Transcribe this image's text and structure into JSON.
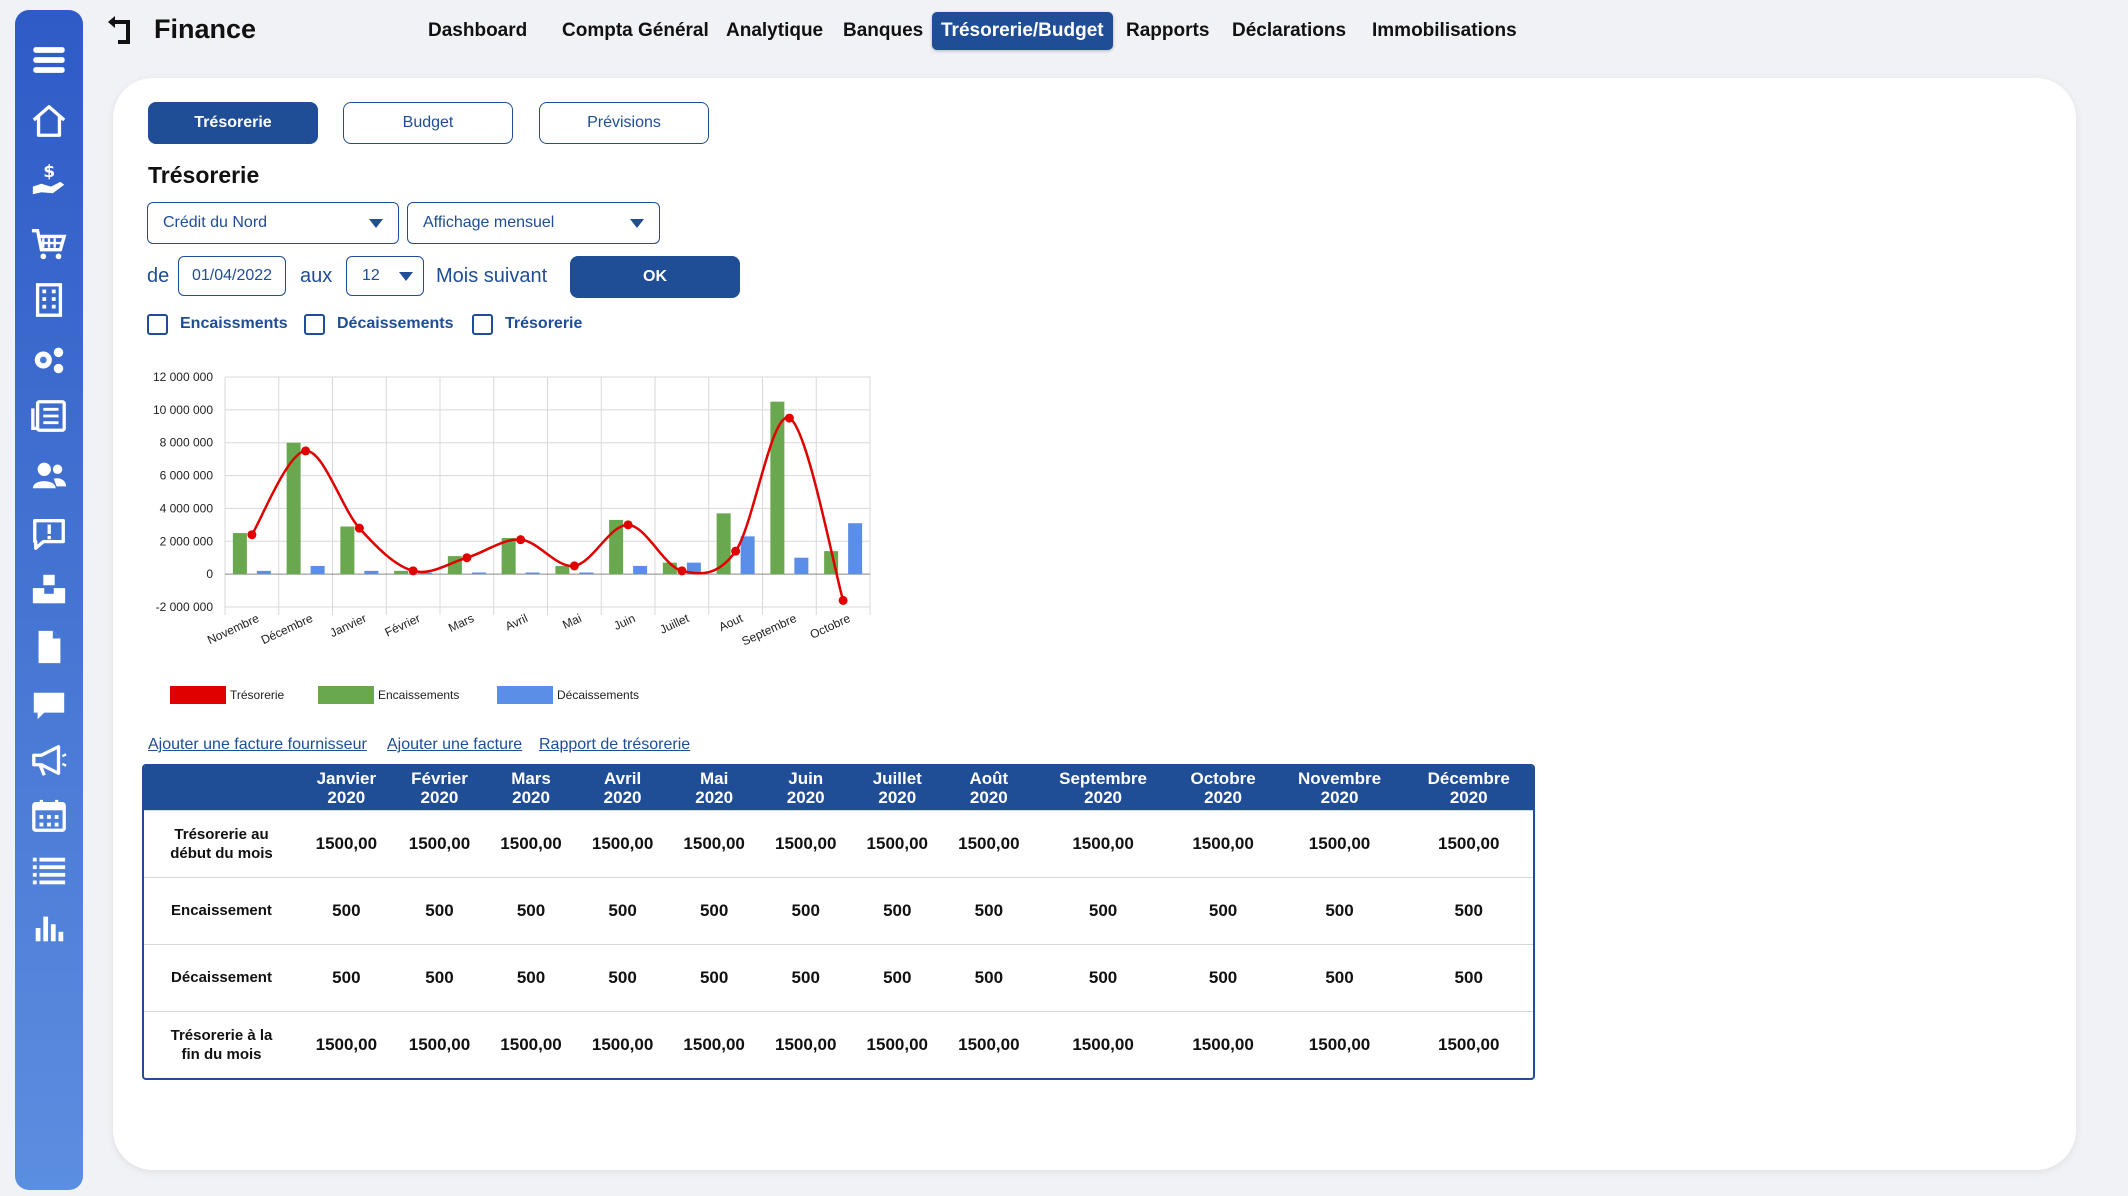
{
  "app": {
    "title": "Finance"
  },
  "nav": [
    "Dashboard",
    "Compta Général",
    "Analytique",
    "Banques",
    "Trésorerie/Budget",
    "Rapports",
    "Déclarations",
    "Immobilisations"
  ],
  "nav_active": "Trésorerie/Budget",
  "sidebar_icons": [
    "menu-icon",
    "home-icon",
    "money-hand-icon",
    "cart-icon",
    "building-icon",
    "gears-icon",
    "newspaper-icon",
    "users-icon",
    "feedback-icon",
    "boxes-icon",
    "file-icon",
    "chat-icon",
    "megaphone-icon",
    "calendar-icon",
    "list-icon",
    "bar-chart-icon"
  ],
  "subtabs": [
    "Trésorerie",
    "Budget",
    "Prévisions"
  ],
  "section_title": "Trésorerie",
  "filters": {
    "bank": "Crédit du Nord",
    "display": "Affichage mensuel",
    "from_label": "de",
    "from_date": "01/04/2022",
    "to_label": "aux",
    "months": "12",
    "next_label": "Mois suivant",
    "ok": "OK"
  },
  "checkboxes": [
    "Encaissments",
    "Décaissements",
    "Trésorerie"
  ],
  "chart_data": {
    "type": "bar",
    "categories": [
      "Novembre",
      "Décembre",
      "Janvier",
      "Février",
      "Mars",
      "Avril",
      "Mai",
      "Juin",
      "Juillet",
      "Aout",
      "Septembre",
      "Octobre"
    ],
    "series": [
      {
        "name": "Encaissements",
        "type": "bar",
        "color": "#6aa84f",
        "values": [
          2500000,
          8000000,
          2900000,
          200000,
          1100000,
          2200000,
          500000,
          3300000,
          700000,
          3700000,
          10500000,
          1400000
        ]
      },
      {
        "name": "Décaissements",
        "type": "bar",
        "color": "#5b8ee6",
        "values": [
          200000,
          500000,
          200000,
          100000,
          100000,
          100000,
          100000,
          500000,
          700000,
          2300000,
          1000000,
          3100000
        ]
      },
      {
        "name": "Trésorerie",
        "type": "line",
        "color": "#e00000",
        "values": [
          2400000,
          7500000,
          2800000,
          200000,
          1000000,
          2100000,
          500000,
          3000000,
          200000,
          1400000,
          9500000,
          -1600000
        ]
      }
    ],
    "yticks": [
      "12 000 000",
      "10 000 000",
      "8 000 000",
      "6 000 000",
      "4 000 000",
      "2 000 000",
      "0",
      "-2 000 000"
    ],
    "ylim": [
      -2000000,
      12000000
    ],
    "grid": true,
    "legend": "bottom"
  },
  "links": [
    "Ajouter une facture fournisseur",
    "Ajouter une facture",
    "Rapport de trésorerie"
  ],
  "table": {
    "columns": [
      [
        "Janvier",
        "2020"
      ],
      [
        "Février",
        "2020"
      ],
      [
        "Mars",
        "2020"
      ],
      [
        "Avril",
        "2020"
      ],
      [
        "Mai",
        "2020"
      ],
      [
        "Juin",
        "2020"
      ],
      [
        "Juillet",
        "2020"
      ],
      [
        "Août",
        "2020"
      ],
      [
        "Septembre",
        "2020"
      ],
      [
        "Octobre",
        "2020"
      ],
      [
        "Novembre",
        "2020"
      ],
      [
        "Décembre",
        "2020"
      ]
    ],
    "rows": [
      {
        "label": [
          "Trésorerie au",
          "début du mois"
        ],
        "values": [
          "1500,00",
          "1500,00",
          "1500,00",
          "1500,00",
          "1500,00",
          "1500,00",
          "1500,00",
          "1500,00",
          "1500,00",
          "1500,00",
          "1500,00",
          "1500,00"
        ]
      },
      {
        "label": [
          "Encaissement"
        ],
        "values": [
          "500",
          "500",
          "500",
          "500",
          "500",
          "500",
          "500",
          "500",
          "500",
          "500",
          "500",
          "500"
        ]
      },
      {
        "label": [
          "Décaissement"
        ],
        "values": [
          "500",
          "500",
          "500",
          "500",
          "500",
          "500",
          "500",
          "500",
          "500",
          "500",
          "500",
          "500"
        ]
      },
      {
        "label": [
          "Trésorerie à la",
          "fin du mois"
        ],
        "values": [
          "1500,00",
          "1500,00",
          "1500,00",
          "1500,00",
          "1500,00",
          "1500,00",
          "1500,00",
          "1500,00",
          "1500,00",
          "1500,00",
          "1500,00",
          "1500,00"
        ]
      }
    ]
  }
}
